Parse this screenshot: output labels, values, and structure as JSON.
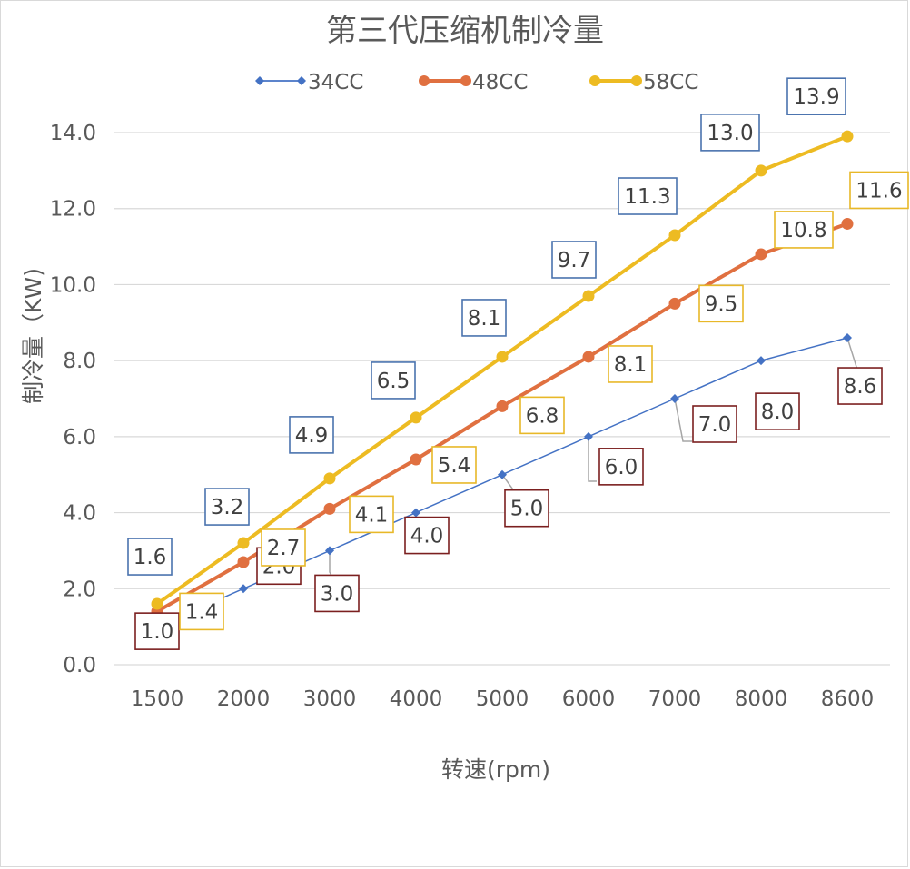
{
  "chart_data": {
    "type": "line",
    "title": "第三代压缩机制冷量",
    "xlabel": "转速(rpm)",
    "ylabel": "制冷量（KW)",
    "categories": [
      "1500",
      "2000",
      "3000",
      "4000",
      "5000",
      "6000",
      "7000",
      "8000",
      "8600"
    ],
    "ylim": [
      0,
      14
    ],
    "yticks": [
      "0.0",
      "2.0",
      "4.0",
      "6.0",
      "8.0",
      "10.0",
      "12.0",
      "14.0"
    ],
    "grid": true,
    "legend_position": "top",
    "series": [
      {
        "name": "34CC",
        "color": "#4472C4",
        "marker": "diamond",
        "label_border": "#7B1F1F",
        "values": [
          1.0,
          2.0,
          3.0,
          4.0,
          5.0,
          6.0,
          7.0,
          8.0,
          8.6
        ],
        "labels": [
          "1.0",
          "2.0",
          "3.0",
          "4.0",
          "5.0",
          "6.0",
          "7.0",
          "8.0",
          "8.6"
        ]
      },
      {
        "name": "48CC",
        "color": "#E07040",
        "marker": "circle",
        "label_border": "#E8B828",
        "values": [
          1.4,
          2.7,
          4.1,
          5.4,
          6.8,
          8.1,
          9.5,
          10.8,
          11.6
        ],
        "labels": [
          "1.4",
          "2.7",
          "4.1",
          "5.4",
          "6.8",
          "8.1",
          "9.5",
          "10.8",
          "11.6"
        ]
      },
      {
        "name": "58CC",
        "color": "#EDBB22",
        "marker": "circle",
        "label_border": "#4A73AE",
        "values": [
          1.6,
          3.2,
          4.9,
          6.5,
          8.1,
          9.7,
          11.3,
          13.0,
          13.9
        ],
        "labels": [
          "1.6",
          "3.2",
          "4.9",
          "6.5",
          "8.1",
          "9.7",
          "11.3",
          "13.0",
          "13.9"
        ]
      }
    ]
  }
}
